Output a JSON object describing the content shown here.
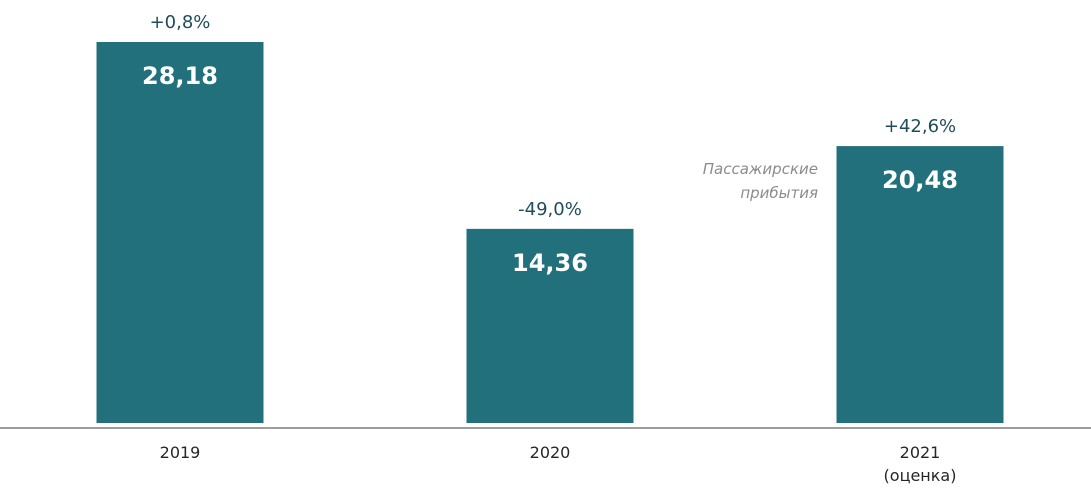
{
  "colors": {
    "bar": "#23707d",
    "axis": "#7f7f7f",
    "change_text": "#1f4e5a",
    "value_text": "#ffffff",
    "category_text": "#262626",
    "annotation_text": "#8c8c8c"
  },
  "chart_data": {
    "type": "bar",
    "title": "",
    "xlabel": "",
    "ylabel": "",
    "grid": false,
    "ylim": [
      0,
      30
    ],
    "categories": [
      {
        "line1": "2019",
        "line2": ""
      },
      {
        "line1": "2020",
        "line2": ""
      },
      {
        "line1": "2021",
        "line2": "(оценка)"
      }
    ],
    "values": [
      28.18,
      14.36,
      20.48
    ],
    "value_labels": [
      "28,18",
      "14,36",
      "20,48"
    ],
    "change_labels": [
      "+0,8%",
      "-49,0%",
      "+42,6%"
    ],
    "annotation": {
      "line1": "Пассажирские",
      "line2": "прибытия"
    }
  }
}
